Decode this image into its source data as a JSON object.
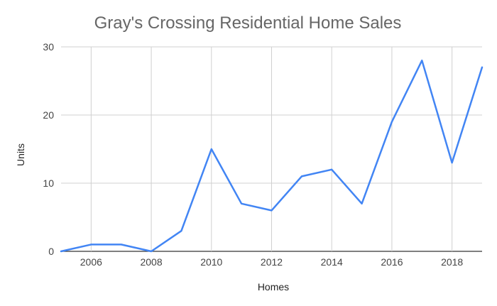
{
  "chart_data": {
    "type": "line",
    "title": "Gray's Crossing Residential Home Sales",
    "xlabel": "Homes",
    "ylabel": "Units",
    "x": [
      2005,
      2006,
      2007,
      2008,
      2009,
      2010,
      2011,
      2012,
      2013,
      2014,
      2015,
      2016,
      2017,
      2018,
      2019
    ],
    "series": [
      {
        "values": [
          0,
          1,
          1,
          0,
          3,
          15,
          7,
          6,
          11,
          12,
          7,
          19,
          28,
          13,
          27
        ]
      }
    ],
    "xlim": [
      2005,
      2019
    ],
    "ylim": [
      0,
      30
    ],
    "x_ticks": [
      "2006",
      "2008",
      "2010",
      "2012",
      "2014",
      "2016",
      "2018"
    ],
    "y_ticks": [
      "0",
      "10",
      "20",
      "30"
    ],
    "grid": true,
    "legend": "none",
    "colors": {
      "line": "#4285f4",
      "grid": "#d0d0d0",
      "title": "#666666"
    }
  }
}
